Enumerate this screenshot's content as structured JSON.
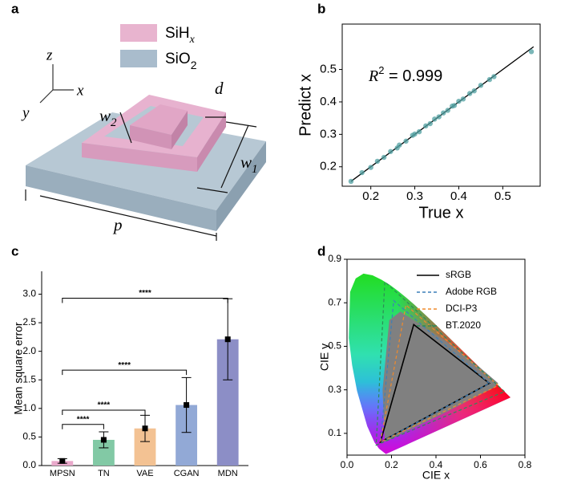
{
  "panel_labels": [
    "a",
    "b",
    "c",
    "d"
  ],
  "diagram": {
    "legend": [
      {
        "label": "SiH",
        "sub": "x"
      },
      {
        "label": "SiO",
        "sub": "2"
      }
    ],
    "axes": [
      "z",
      "x",
      "y"
    ],
    "dimensions": [
      {
        "label": "d"
      },
      {
        "label": "w",
        "sub": "2"
      },
      {
        "label": "w",
        "sub": "1"
      },
      {
        "label": "p"
      }
    ]
  },
  "chart_data": [
    {
      "type": "scatter",
      "xlabel": "True x",
      "ylabel": "Predict x",
      "annotation": {
        "text": "R",
        "sup": "2",
        "rest": " = 0.999"
      },
      "xlim": [
        0.135,
        0.585
      ],
      "ylim": [
        0.14,
        0.64
      ],
      "xticks": [
        0.2,
        0.3,
        0.4,
        0.5
      ],
      "yticks": [
        0.2,
        0.3,
        0.4,
        0.5
      ],
      "color": "#4f9fa0",
      "x": [
        0.155,
        0.18,
        0.2,
        0.215,
        0.23,
        0.245,
        0.26,
        0.265,
        0.28,
        0.295,
        0.3,
        0.31,
        0.325,
        0.335,
        0.345,
        0.355,
        0.365,
        0.375,
        0.385,
        0.39,
        0.4,
        0.41,
        0.425,
        0.435,
        0.45,
        0.47,
        0.48,
        0.565
      ],
      "y": [
        0.155,
        0.182,
        0.198,
        0.217,
        0.229,
        0.247,
        0.258,
        0.267,
        0.279,
        0.297,
        0.301,
        0.308,
        0.326,
        0.333,
        0.347,
        0.354,
        0.366,
        0.374,
        0.387,
        0.389,
        0.402,
        0.409,
        0.426,
        0.434,
        0.451,
        0.469,
        0.478,
        0.555
      ],
      "fit": {
        "x": [
          0.155,
          0.57
        ],
        "y": [
          0.155,
          0.57
        ],
        "color": "#000000"
      }
    },
    {
      "type": "bar",
      "ylabel": "Mean square error",
      "categories": [
        "MPSN",
        "TN",
        "VAE",
        "CGAN",
        "MDN"
      ],
      "values": [
        0.08,
        0.45,
        0.65,
        1.06,
        2.21
      ],
      "errors": [
        0.04,
        0.14,
        0.23,
        0.48,
        0.71
      ],
      "colors": [
        "#e9a9cb",
        "#82c9a5",
        "#f3c293",
        "#92a9d6",
        "#8c8ec6"
      ],
      "ylim": [
        0,
        3.4
      ],
      "yticks": [
        {
          "value": 0,
          "label": "0.0"
        },
        0.5,
        {
          "value": 1,
          "label": "1.0"
        },
        1.5,
        {
          "value": 2,
          "label": "2.0"
        },
        2.5,
        {
          "value": 3,
          "label": "3.0"
        }
      ],
      "significance": [
        {
          "from": 0,
          "to": 1,
          "y": 0.72,
          "label": "****"
        },
        {
          "from": 0,
          "to": 2,
          "y": 0.97,
          "label": "****"
        },
        {
          "from": 0,
          "to": 3,
          "y": 1.67,
          "label": "****"
        },
        {
          "from": 0,
          "to": 4,
          "y": 2.93,
          "label": "****"
        }
      ]
    },
    {
      "type": "cie",
      "xlabel": "CIE x",
      "ylabel": "CIE y",
      "xlim": [
        0,
        0.8
      ],
      "ylim": [
        0,
        0.9
      ],
      "xticks": [
        {
          "value": 0,
          "label": "0.0"
        },
        0.2,
        0.4,
        0.6,
        0.8
      ],
      "yticks": [
        0.1,
        0.3,
        0.5,
        0.7,
        0.9
      ],
      "locus": {
        "x": [
          0.175,
          0.144,
          0.124,
          0.091,
          0.045,
          0.023,
          0.008,
          0.014,
          0.039,
          0.074,
          0.115,
          0.155,
          0.193,
          0.23,
          0.266,
          0.302,
          0.374,
          0.444,
          0.512,
          0.575,
          0.627,
          0.666,
          0.692,
          0.735
        ],
        "y": [
          0.005,
          0.03,
          0.058,
          0.133,
          0.295,
          0.413,
          0.538,
          0.75,
          0.812,
          0.834,
          0.826,
          0.806,
          0.782,
          0.754,
          0.724,
          0.692,
          0.624,
          0.555,
          0.487,
          0.424,
          0.373,
          0.334,
          0.308,
          0.265
        ]
      },
      "gamut": {
        "color": "#808080",
        "x": [
          0.17,
          0.16,
          0.19,
          0.24,
          0.3,
          0.45,
          0.6,
          0.68,
          0.66,
          0.45,
          0.25
        ],
        "y": [
          0.06,
          0.3,
          0.62,
          0.66,
          0.62,
          0.52,
          0.4,
          0.33,
          0.31,
          0.2,
          0.1
        ]
      },
      "series": [
        {
          "name": "sRGB",
          "color": "#000000",
          "dashed": false,
          "x": [
            0.64,
            0.3,
            0.15
          ],
          "y": [
            0.33,
            0.6,
            0.06
          ]
        },
        {
          "name": "Adobe RGB",
          "color": "#3b7fb8",
          "dashed": true,
          "x": [
            0.64,
            0.21,
            0.15
          ],
          "y": [
            0.33,
            0.71,
            0.06
          ]
        },
        {
          "name": "DCI-P3",
          "color": "#f08a2c",
          "dashed": true,
          "x": [
            0.68,
            0.265,
            0.15
          ],
          "y": [
            0.32,
            0.69,
            0.06
          ]
        },
        {
          "name": "BT.2020",
          "color": "#2e8b57",
          "dashed": true,
          "x": [
            0.708,
            0.17,
            0.131
          ],
          "y": [
            0.292,
            0.797,
            0.046
          ]
        }
      ]
    }
  ]
}
